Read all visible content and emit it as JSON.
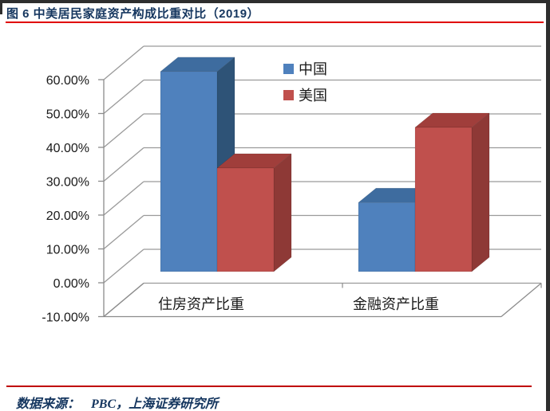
{
  "page": {
    "title": "图 6 中美居民家庭资产构成比重对比（2019）",
    "source": {
      "label": "数据来源：",
      "value": "PBC，上海证券研究所"
    }
  },
  "chart_data": {
    "type": "bar",
    "subtype": "3d_clustered_column",
    "title": "中美居民家庭资产构成比重对比（2019）",
    "categories": [
      "住房资产比重",
      "金融资产比重"
    ],
    "series": [
      {
        "name": "中国",
        "values": [
          59.1,
          20.4
        ],
        "colors": {
          "front": "#4F81BD",
          "top": "#3E6C9F",
          "side": "#2E5377"
        }
      },
      {
        "name": "美国",
        "values": [
          30.6,
          42.6
        ],
        "colors": {
          "front": "#C0504D",
          "top": "#A03E3B",
          "side": "#8E3936"
        }
      }
    ],
    "xlabel": "",
    "ylabel": "",
    "ylim": [
      -10,
      60
    ],
    "ytick_step": 10,
    "ytick_values": [
      60,
      50,
      40,
      30,
      20,
      10,
      0,
      -10
    ],
    "ytick_labels": [
      "60.00%",
      "50.00%",
      "40.00%",
      "30.00%",
      "20.00%",
      "10.00%",
      "0.00%",
      "-10.00%"
    ],
    "grid": true,
    "legend_position": "upper-right-inside"
  },
  "colors": {
    "title_text": "#15365F",
    "title_rule": "#E00000",
    "footer_rule": "#C00000",
    "source_text": "#15365F",
    "gridline": "#9a9a9a",
    "axis_line": "#8c8c8c",
    "label_text": "#1a1a1a",
    "page_edge": "#2E2E2E"
  }
}
